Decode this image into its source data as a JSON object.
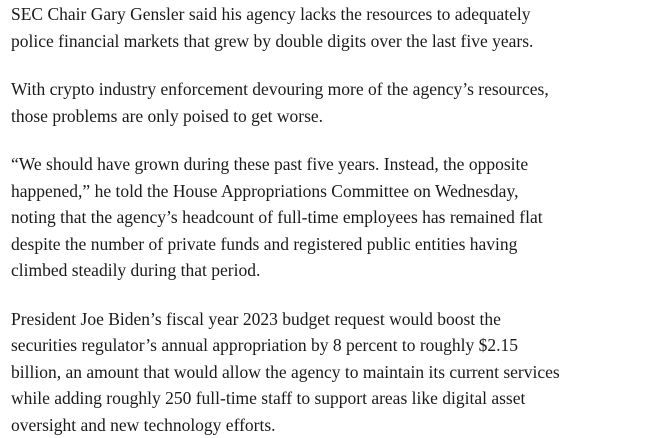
{
  "article": {
    "paragraphs": [
      {
        "lines": [
          "SEC Chair Gary Gensler said his agency lacks the resources to adequately",
          "police financial markets that grew by double digits over the last five years."
        ]
      },
      {
        "lines": [
          "With crypto industry enforcement devouring more of the agency’s resources,",
          "those problems are only poised to get worse."
        ]
      },
      {
        "lines": [
          "“We should have grown during these past five years. Instead, the opposite",
          "happened,” he told the House Appropriations Committee on Wednesday,",
          "noting that the agency’s headcount of full-time employees has remained flat",
          "despite the number of private funds and registered public entities having",
          "climbed steadily during that period."
        ]
      },
      {
        "lines": [
          "President Joe Biden’s fiscal year 2023 budget request would boost the",
          "securities regulator’s annual appropriation by 8 percent to roughly $2.15",
          "billion, an amount that would allow the agency to maintain its current services",
          "while adding roughly 250 full-time staff to support areas like digital asset",
          "oversight and new technology efforts."
        ]
      }
    ]
  }
}
